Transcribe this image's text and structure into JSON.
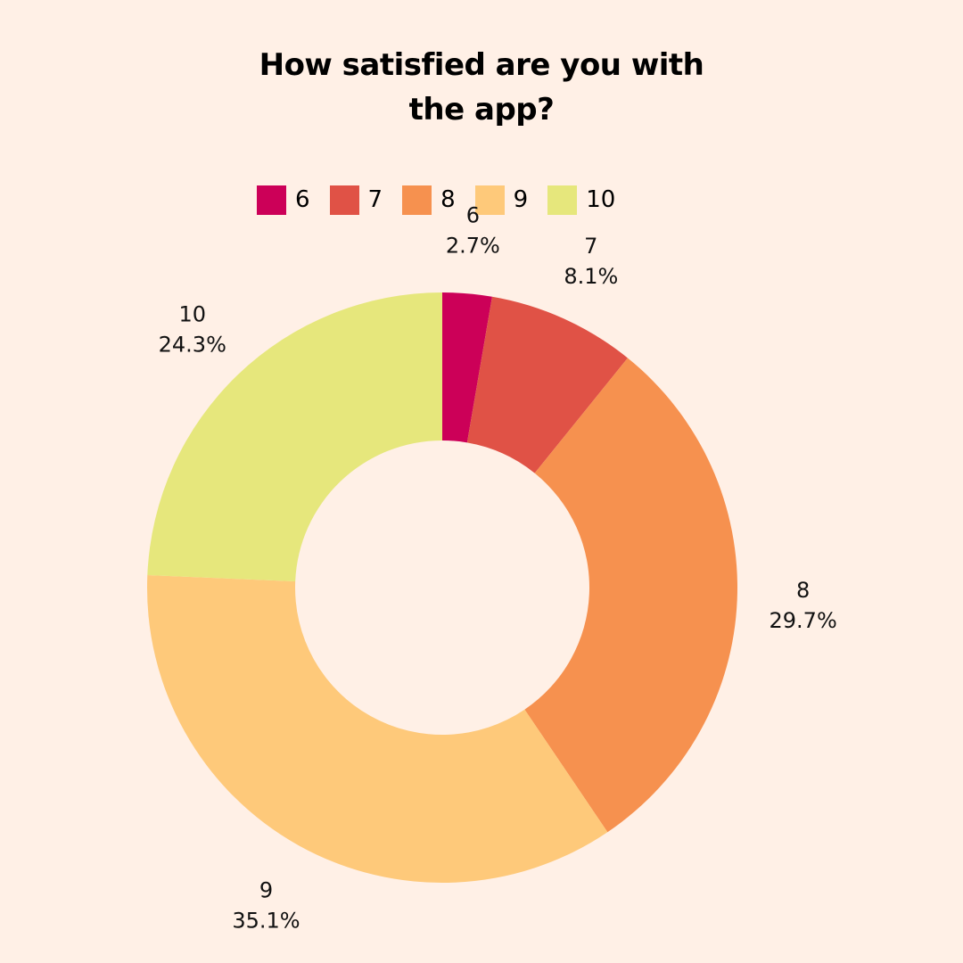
{
  "chart_data": {
    "type": "pie",
    "title_lines": [
      "How satisfied are you with",
      "the app?"
    ],
    "donut": true,
    "legend_position": "top",
    "categories": [
      "6",
      "7",
      "8",
      "9",
      "10"
    ],
    "values": [
      2.7,
      8.1,
      29.7,
      35.1,
      24.3
    ],
    "value_labels": [
      "2.7%",
      "8.1%",
      "29.7%",
      "35.1%",
      "24.3%"
    ],
    "colors": [
      "#cc0058",
      "#e05246",
      "#f6914f",
      "#fec97a",
      "#e6e77c"
    ]
  }
}
